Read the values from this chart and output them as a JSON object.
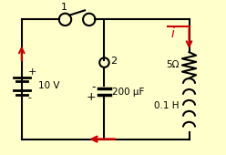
{
  "bg_color": "#ffffcc",
  "line_color": "black",
  "red_color": "#cc0000",
  "lw": 1.5,
  "fig_w": 2.48,
  "fig_h": 1.7,
  "dpi": 100,
  "xlim": [
    0,
    10
  ],
  "ylim": [
    0,
    7
  ],
  "L": 0.8,
  "R": 8.5,
  "T": 6.2,
  "B": 0.7,
  "labels": {
    "node1": "1",
    "node2": "2",
    "voltage": "10 V",
    "capacitor": "200 μF",
    "resistor": "5Ω",
    "inductor": "0.1 H",
    "current": "i"
  }
}
